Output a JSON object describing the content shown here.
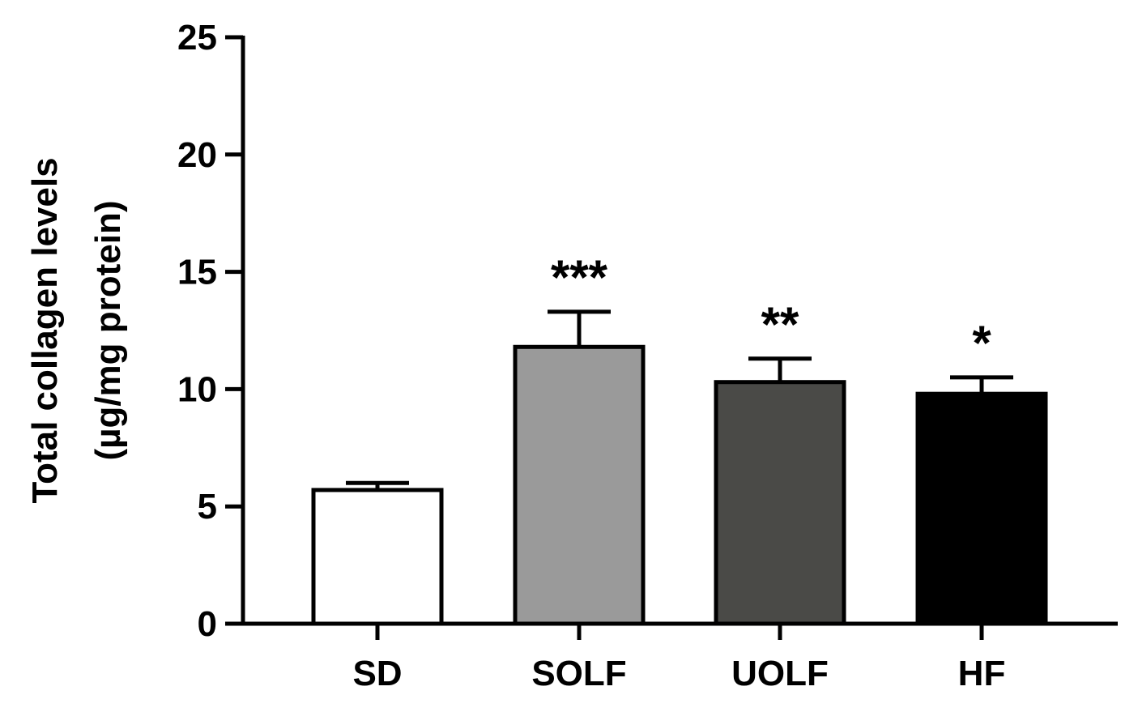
{
  "chart_data": {
    "type": "bar",
    "title": "",
    "xlabel": "",
    "ylabel_lines": [
      "Total collagen levels",
      "(µg/mg protein)"
    ],
    "categories": [
      "SD",
      "SOLF",
      "UOLF",
      "HF"
    ],
    "values": [
      5.7,
      11.8,
      10.3,
      9.8
    ],
    "errors": [
      0.3,
      1.5,
      1.0,
      0.7
    ],
    "significance": [
      "",
      "***",
      "**",
      "*"
    ],
    "colors": [
      "#ffffff",
      "#9a9a9a",
      "#4a4a47",
      "#000000"
    ],
    "ylim": [
      0,
      25
    ],
    "yticks": [
      0,
      5,
      10,
      15,
      20,
      25
    ],
    "grid": false,
    "legend": "none"
  }
}
